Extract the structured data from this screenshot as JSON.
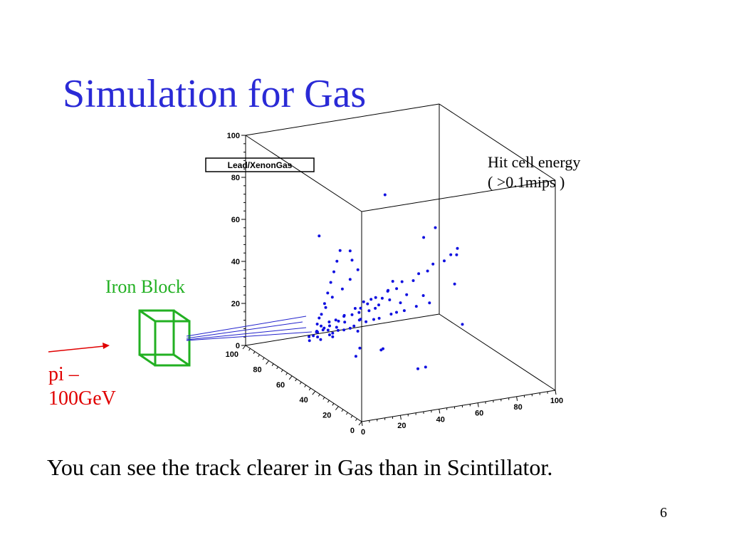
{
  "slide": {
    "title": "Simulation for Gas",
    "title_color": "#2a2ad6",
    "caption": "You can see the track clearer in Gas than in Scintillator.",
    "page_number": "6"
  },
  "annotations": {
    "hit_cell_energy": [
      "Hit cell energy",
      "( >0.1mips )"
    ],
    "iron_block": "Iron Block",
    "iron_color": "#22b022",
    "beam": [
      "pi –",
      "100GeV"
    ],
    "beam_color": "#e00000"
  },
  "chart_data": {
    "type": "scatter",
    "title": "Lead/XenonGas",
    "series_color": "#1010e0",
    "axes": {
      "x": {
        "range": [
          0,
          100
        ],
        "ticks": [
          0,
          20,
          40,
          60,
          80,
          100
        ]
      },
      "y": {
        "range": [
          0,
          100
        ],
        "ticks": [
          0,
          20,
          40,
          60,
          80,
          100
        ]
      },
      "z": {
        "range": [
          0,
          100
        ],
        "ticks": [
          0,
          20,
          40,
          60,
          80,
          100
        ]
      }
    },
    "tick_labels": {
      "x": [
        "0",
        "20",
        "40",
        "60",
        "80",
        "100"
      ],
      "y": [
        "0",
        "20",
        "40",
        "60",
        "80",
        "100"
      ],
      "z": [
        "0",
        "20",
        "40",
        "60",
        "80",
        "100"
      ]
    },
    "points": [
      [
        5,
        50,
        22
      ],
      [
        6,
        48,
        22
      ],
      [
        8,
        52,
        23
      ],
      [
        10,
        50,
        24
      ],
      [
        12,
        49,
        24
      ],
      [
        14,
        51,
        25
      ],
      [
        15,
        53,
        26
      ],
      [
        18,
        50,
        27
      ],
      [
        20,
        48,
        27
      ],
      [
        22,
        52,
        28
      ],
      [
        25,
        50,
        29
      ],
      [
        28,
        49,
        30
      ],
      [
        30,
        51,
        31
      ],
      [
        33,
        50,
        33
      ],
      [
        36,
        52,
        34
      ],
      [
        40,
        49,
        35
      ],
      [
        44,
        51,
        37
      ],
      [
        48,
        50,
        38
      ],
      [
        52,
        52,
        40
      ],
      [
        56,
        49,
        41
      ],
      [
        60,
        51,
        43
      ],
      [
        64,
        50,
        44
      ],
      [
        68,
        52,
        46
      ],
      [
        72,
        49,
        48
      ],
      [
        76,
        50,
        50
      ],
      [
        80,
        51,
        52
      ],
      [
        10,
        55,
        25
      ],
      [
        14,
        58,
        28
      ],
      [
        18,
        62,
        31
      ],
      [
        22,
        66,
        34
      ],
      [
        26,
        70,
        37
      ],
      [
        30,
        74,
        40
      ],
      [
        34,
        78,
        43
      ],
      [
        38,
        82,
        46
      ],
      [
        12,
        45,
        24
      ],
      [
        16,
        42,
        26
      ],
      [
        20,
        40,
        28
      ],
      [
        25,
        38,
        30
      ],
      [
        30,
        35,
        32
      ],
      [
        35,
        33,
        34
      ],
      [
        40,
        30,
        36
      ],
      [
        45,
        28,
        38
      ],
      [
        50,
        25,
        40
      ],
      [
        8,
        50,
        30
      ],
      [
        12,
        51,
        34
      ],
      [
        16,
        52,
        38
      ],
      [
        20,
        50,
        42
      ],
      [
        24,
        50,
        46
      ],
      [
        28,
        50,
        50
      ],
      [
        3,
        50,
        20
      ],
      [
        4,
        52,
        21
      ],
      [
        7,
        47,
        21
      ],
      [
        9,
        53,
        22
      ],
      [
        11,
        46,
        23
      ],
      [
        13,
        54,
        23
      ],
      [
        6,
        49,
        24
      ],
      [
        9,
        50,
        26
      ],
      [
        16,
        47,
        24
      ],
      [
        19,
        54,
        26
      ],
      [
        21,
        45,
        25
      ],
      [
        24,
        55,
        27
      ],
      [
        27,
        46,
        28
      ],
      [
        29,
        54,
        30
      ],
      [
        32,
        47,
        31
      ],
      [
        34,
        55,
        32
      ],
      [
        37,
        47,
        33
      ],
      [
        39,
        53,
        34
      ],
      [
        42,
        46,
        35
      ],
      [
        46,
        54,
        36
      ],
      [
        15,
        50,
        20
      ],
      [
        20,
        55,
        22
      ],
      [
        25,
        45,
        23
      ],
      [
        30,
        52,
        25
      ],
      [
        35,
        48,
        26
      ],
      [
        40,
        55,
        28
      ],
      [
        45,
        45,
        29
      ],
      [
        50,
        50,
        31
      ],
      [
        55,
        53,
        33
      ],
      [
        60,
        47,
        34
      ],
      [
        30,
        60,
        55
      ],
      [
        45,
        20,
        12
      ],
      [
        60,
        80,
        70
      ],
      [
        35,
        40,
        15
      ],
      [
        20,
        70,
        60
      ],
      [
        70,
        30,
        25
      ],
      [
        25,
        50,
        55
      ],
      [
        40,
        50,
        10
      ],
      [
        15,
        30,
        18
      ],
      [
        55,
        65,
        35
      ],
      [
        65,
        55,
        58
      ],
      [
        80,
        70,
        55
      ],
      [
        50,
        35,
        5
      ],
      [
        35,
        60,
        8
      ],
      [
        75,
        45,
        38
      ],
      [
        85,
        60,
        45
      ]
    ]
  }
}
